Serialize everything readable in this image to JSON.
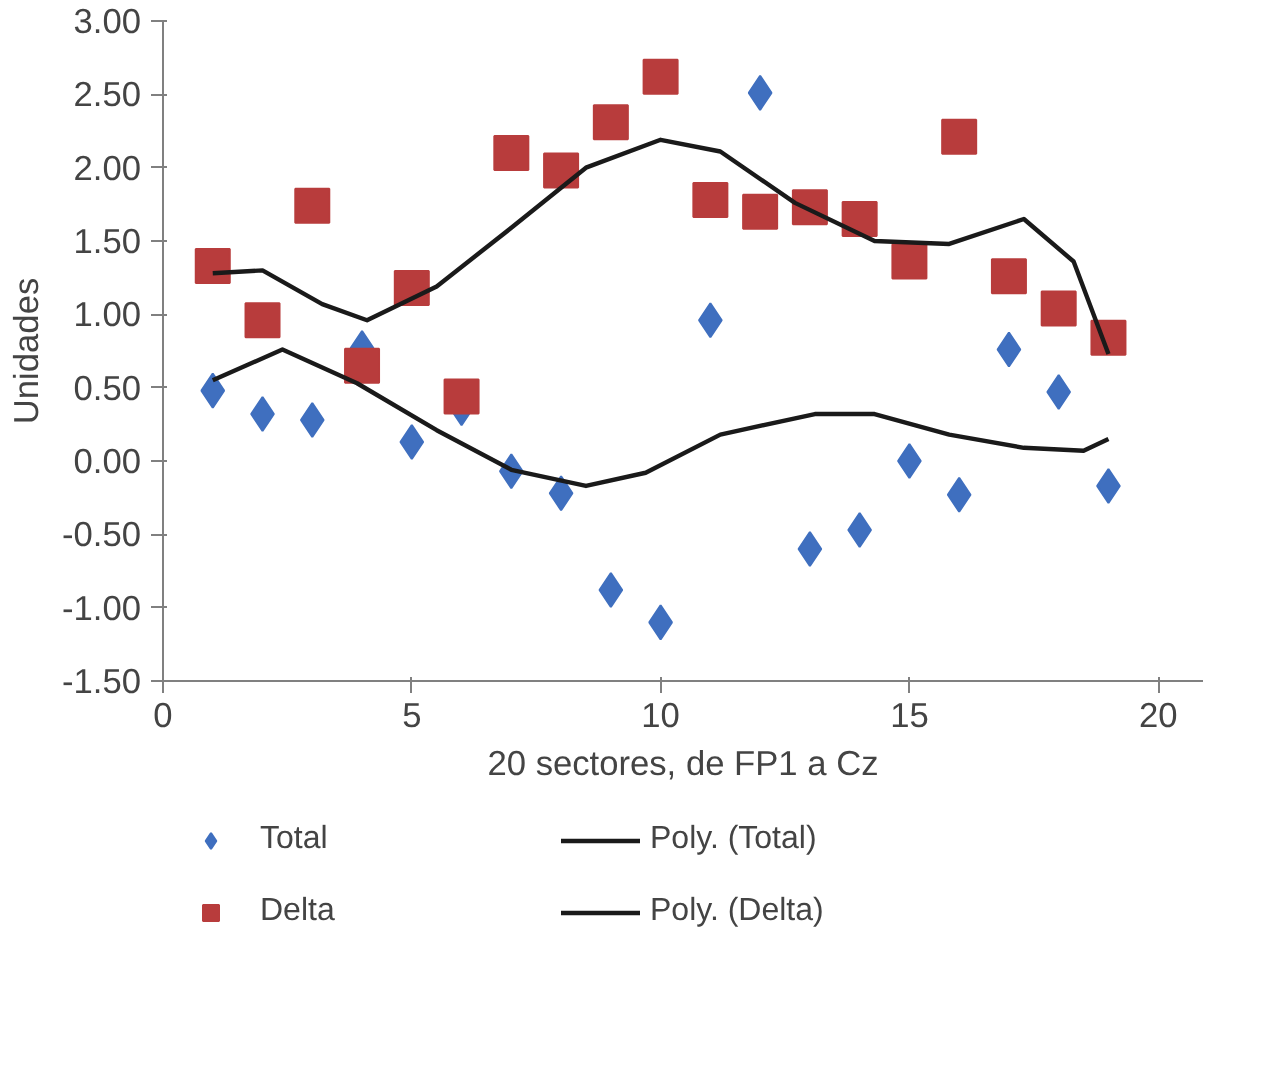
{
  "chart_data": {
    "type": "scatter",
    "xlabel": "20 sectores, de FP1 a Cz",
    "ylabel": "Unidades",
    "xlim": [
      0,
      20.9
    ],
    "xticks": [
      0,
      5,
      10,
      15,
      20
    ],
    "ylim": [
      -1.5,
      3.0
    ],
    "yticks": [
      {
        "value": -1.5,
        "label": "-1.50"
      },
      {
        "value": -1.0,
        "label": "-1.00"
      },
      {
        "value": -0.5,
        "label": "-0.50"
      },
      {
        "value": 0,
        "label": "0.00"
      },
      {
        "value": 0.5,
        "label": "0.50"
      },
      {
        "value": 1.0,
        "label": "1.00"
      },
      {
        "value": 1.5,
        "label": "1.50"
      },
      {
        "value": 2.0,
        "label": "2.00"
      },
      {
        "value": 2.5,
        "label": "2.50"
      },
      {
        "value": 3.0,
        "label": "3.00"
      }
    ],
    "grid": false,
    "legend": "bottom",
    "series": [
      {
        "name": "Total",
        "marker": "diamond",
        "color": "#3f6fbf",
        "x": [
          1,
          2,
          3,
          4,
          5,
          6,
          7,
          8,
          9,
          10,
          11,
          12,
          13,
          14,
          15,
          16,
          17,
          18,
          19
        ],
        "values": [
          0.48,
          0.32,
          0.28,
          0.77,
          0.13,
          0.36,
          -0.07,
          -0.22,
          -0.88,
          -1.1,
          0.96,
          2.51,
          -0.6,
          -0.47,
          0.0,
          -0.23,
          0.76,
          0.47,
          -0.17
        ]
      },
      {
        "name": "Delta",
        "marker": "square",
        "color": "#b83c3c",
        "x": [
          1,
          2,
          3,
          4,
          5,
          6,
          7,
          8,
          9,
          10,
          11,
          12,
          13,
          14,
          15,
          16,
          17,
          18,
          19
        ],
        "values": [
          1.33,
          0.96,
          1.74,
          0.65,
          1.18,
          0.44,
          2.1,
          1.98,
          2.31,
          2.62,
          1.78,
          1.7,
          1.73,
          1.65,
          1.36,
          2.21,
          1.26,
          1.04,
          0.84
        ]
      },
      {
        "name": "Poly. (Total)",
        "type": "line",
        "line_style": "solid",
        "color": "#1a1a1a",
        "x": [
          1,
          2.4,
          3.9,
          5.5,
          7,
          8.5,
          9.7,
          11.2,
          13.1,
          14.3,
          15.8,
          17.3,
          18.5,
          19
        ],
        "values": [
          0.55,
          0.76,
          0.53,
          0.21,
          -0.06,
          -0.17,
          -0.08,
          0.18,
          0.32,
          0.32,
          0.18,
          0.09,
          0.07,
          0.15
        ]
      },
      {
        "name": "Poly. (Delta)",
        "type": "line",
        "line_style": "solid",
        "color": "#1a1a1a",
        "x": [
          1,
          2,
          3.2,
          4.1,
          5.5,
          7,
          8.5,
          10,
          11.2,
          12.7,
          14.3,
          15.8,
          17.3,
          18.3,
          19
        ],
        "values": [
          1.28,
          1.3,
          1.07,
          0.96,
          1.19,
          1.59,
          2.0,
          2.19,
          2.11,
          1.76,
          1.5,
          1.48,
          1.65,
          1.36,
          0.73
        ]
      }
    ]
  }
}
